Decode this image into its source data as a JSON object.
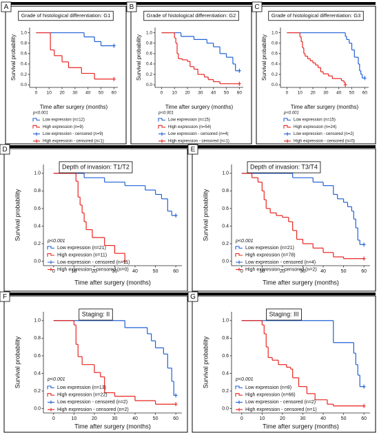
{
  "chart_data": [
    {
      "type": "step",
      "letter": "A",
      "title": "Grade of histological differentiation: G1",
      "xlabel": "Time after surgery (months)",
      "ylabel": "Survival probability",
      "annotation": "p<0.001",
      "xlim": [
        -5,
        63
      ],
      "ylim": [
        -0.05,
        1.1
      ],
      "xticks": [
        0,
        10,
        20,
        30,
        40,
        50,
        60
      ],
      "yticks": [
        {
          "value": 0,
          "label": "0.0"
        },
        0.2,
        0.4,
        0.6,
        0.8,
        {
          "value": 1,
          "label": "1.0"
        }
      ],
      "series": [
        {
          "name": "Low expression (n=12)",
          "color": "#1f5fd6",
          "x": [
            0,
            37,
            45,
            50,
            60
          ],
          "values": [
            1,
            0.92,
            0.83,
            0.75,
            0.75
          ]
        },
        {
          "name": "High expression (n=9)",
          "color": "#e8231e",
          "x": [
            0,
            11,
            14,
            20,
            25,
            35,
            45,
            60
          ],
          "values": [
            1,
            0.67,
            0.56,
            0.44,
            0.33,
            0.22,
            0.11,
            0.11
          ]
        }
      ],
      "censored_labels": [
        "Low expression - censored (n=9)",
        "High expression - censored (n=1)"
      ]
    },
    {
      "type": "step",
      "letter": "B",
      "title": "Grade of histological differentiation: G2",
      "xlabel": "Time after surgery (months)",
      "ylabel": "Survival probability",
      "annotation": "p<0.001",
      "xlim": [
        -5,
        63
      ],
      "ylim": [
        -0.05,
        1.1
      ],
      "xticks": [
        0,
        10,
        20,
        30,
        40,
        50,
        60
      ],
      "yticks": [
        {
          "value": 0,
          "label": "0.0"
        },
        0.2,
        0.4,
        0.6,
        0.8,
        {
          "value": 1,
          "label": "1.0"
        }
      ],
      "series": [
        {
          "name": "Low expression (n=15)",
          "color": "#1f5fd6",
          "x": [
            0,
            15,
            25,
            35,
            40,
            45,
            50,
            55,
            57,
            60
          ],
          "values": [
            1,
            0.93,
            0.87,
            0.8,
            0.73,
            0.6,
            0.53,
            0.4,
            0.27,
            0.27
          ]
        },
        {
          "name": "High expression (n=54)",
          "color": "#e8231e",
          "x": [
            0,
            10,
            11,
            12,
            13,
            16,
            20,
            22,
            25,
            28,
            33,
            36,
            40,
            45,
            60
          ],
          "values": [
            1,
            0.9,
            0.8,
            0.6,
            0.5,
            0.48,
            0.45,
            0.35,
            0.3,
            0.2,
            0.15,
            0.1,
            0.06,
            0.02,
            0.02
          ]
        }
      ],
      "censored_labels": [
        "Low expression - censored (n=4)",
        "High expression - censored (n=1)"
      ]
    },
    {
      "type": "step",
      "letter": "C",
      "title": "Grade of histological differentiation: G3",
      "xlabel": "Time after surgery (months)",
      "ylabel": "Survival probability",
      "annotation": "p<0.001",
      "xlim": [
        -5,
        63
      ],
      "ylim": [
        -0.05,
        1.1
      ],
      "xticks": [
        0,
        10,
        20,
        30,
        40,
        50,
        60
      ],
      "yticks": [
        {
          "value": 0,
          "label": "0.0"
        },
        0.2,
        0.4,
        0.6,
        0.8,
        {
          "value": 1,
          "label": "1.0"
        }
      ],
      "series": [
        {
          "name": "Low expression (n=15)",
          "color": "#1f5fd6",
          "x": [
            0,
            45,
            46,
            48,
            50,
            52,
            55,
            56,
            57,
            58,
            60
          ],
          "values": [
            1,
            0.93,
            0.87,
            0.8,
            0.67,
            0.53,
            0.4,
            0.27,
            0.2,
            0.13,
            0.13
          ]
        },
        {
          "name": "High expression (n=24)",
          "color": "#e8231e",
          "x": [
            0,
            10,
            11,
            12,
            13,
            14,
            16,
            18,
            20,
            22,
            24,
            26,
            28,
            32,
            35,
            42,
            44,
            45
          ],
          "values": [
            1,
            0.92,
            0.83,
            0.71,
            0.6,
            0.55,
            0.5,
            0.46,
            0.42,
            0.38,
            0.33,
            0.25,
            0.21,
            0.17,
            0.12,
            0.08,
            0.04,
            0
          ]
        }
      ],
      "censored_labels": [
        "Low expression - censored (n=2)",
        "High expression - censored (n=0)"
      ]
    },
    {
      "type": "step",
      "letter": "D",
      "title": "Depth of invasion: T1/T2",
      "xlabel": "Time after surgery (months)",
      "ylabel": "Survival probability",
      "annotation": "p<0.001",
      "xlim": [
        -5,
        63
      ],
      "ylim": [
        -0.05,
        1.1
      ],
      "xticks": [
        0,
        10,
        20,
        30,
        40,
        50,
        60
      ],
      "yticks": [
        {
          "value": 0,
          "label": "0.0"
        },
        0.2,
        0.4,
        0.6,
        0.8,
        {
          "value": 1,
          "label": "1.0"
        }
      ],
      "series": [
        {
          "name": "Low expression (n=21)",
          "color": "#1f5fd6",
          "x": [
            0,
            15,
            25,
            35,
            45,
            50,
            53,
            56,
            58,
            60
          ],
          "values": [
            1,
            0.95,
            0.9,
            0.86,
            0.81,
            0.76,
            0.71,
            0.57,
            0.52,
            0.52
          ]
        },
        {
          "name": "High expression (n=11)",
          "color": "#e8231e",
          "x": [
            0,
            11,
            12,
            13,
            14,
            15,
            16,
            19,
            25,
            30,
            35
          ],
          "values": [
            1,
            0.91,
            0.73,
            0.64,
            0.55,
            0.45,
            0.36,
            0.27,
            0.18,
            0.09,
            0
          ]
        }
      ],
      "censored_labels": [
        "Low expression - censored (n=11)",
        "High expression - censored (n=0)"
      ]
    },
    {
      "type": "step",
      "letter": "E",
      "title": "Depth of invasion: T3/T4",
      "xlabel": "Time after surgery (months)",
      "ylabel": "Survival probability",
      "annotation": "p<0.001",
      "xlim": [
        -5,
        63
      ],
      "ylim": [
        -0.05,
        1.1
      ],
      "xticks": [
        0,
        10,
        20,
        30,
        40,
        50,
        60
      ],
      "yticks": [
        {
          "value": 0,
          "label": "0.0"
        },
        0.2,
        0.4,
        0.6,
        0.8,
        {
          "value": 1,
          "label": "1.0"
        }
      ],
      "series": [
        {
          "name": "Low expression (n=21)",
          "color": "#1f5fd6",
          "x": [
            0,
            25,
            35,
            40,
            45,
            47,
            50,
            52,
            54,
            55,
            56,
            57,
            58,
            60
          ],
          "values": [
            1,
            0.95,
            0.9,
            0.86,
            0.76,
            0.71,
            0.67,
            0.62,
            0.57,
            0.48,
            0.38,
            0.24,
            0.19,
            0.19
          ]
        },
        {
          "name": "High expression (n=78)",
          "color": "#e8231e",
          "x": [
            0,
            5,
            8,
            10,
            11,
            12,
            14,
            17,
            20,
            23,
            25,
            27,
            30,
            35,
            40,
            45,
            50,
            60
          ],
          "values": [
            1,
            0.95,
            0.9,
            0.8,
            0.7,
            0.6,
            0.55,
            0.52,
            0.5,
            0.45,
            0.35,
            0.25,
            0.2,
            0.15,
            0.1,
            0.05,
            0.03,
            0.03
          ]
        }
      ],
      "censored_labels": [
        "Low expression - censored (n=4)",
        "High expression - censored (n=2)"
      ]
    },
    {
      "type": "step",
      "letter": "F",
      "title": "Staging: II",
      "xlabel": "Time after surgery (months)",
      "ylabel": "Survival probability",
      "annotation": "p<0.001",
      "xlim": [
        -5,
        63
      ],
      "ylim": [
        -0.05,
        1.1
      ],
      "xticks": [
        0,
        10,
        20,
        30,
        40,
        50,
        60
      ],
      "yticks": [
        {
          "value": 0,
          "label": "0.0"
        },
        0.2,
        0.4,
        0.6,
        0.8,
        {
          "value": 1,
          "label": "1.0"
        }
      ],
      "series": [
        {
          "name": "Low expression (n=13)",
          "color": "#1f5fd6",
          "x": [
            0,
            35,
            46,
            48,
            50,
            54,
            56,
            58,
            59,
            60
          ],
          "values": [
            1,
            0.92,
            0.85,
            0.77,
            0.69,
            0.62,
            0.46,
            0.31,
            0.15,
            0.15
          ]
        },
        {
          "name": "High expression (n=22)",
          "color": "#e8231e",
          "x": [
            0,
            10,
            11,
            12,
            14,
            20,
            23,
            25,
            30,
            40,
            50,
            60
          ],
          "values": [
            1,
            0.95,
            0.73,
            0.59,
            0.5,
            0.41,
            0.36,
            0.18,
            0.14,
            0.09,
            0.05,
            0.05
          ]
        }
      ],
      "censored_labels": [
        "Low expression - censored (n=2)",
        "High expression - censored (n=2)"
      ]
    },
    {
      "type": "step",
      "letter": "G",
      "title": "Staging: III",
      "xlabel": "Time after surgery (months)",
      "ylabel": "Survival probability",
      "annotation": "p<0.001",
      "xlim": [
        -5,
        63
      ],
      "ylim": [
        -0.05,
        1.1
      ],
      "xticks": [
        0,
        10,
        20,
        30,
        40,
        50,
        60
      ],
      "yticks": [
        {
          "value": 0,
          "label": "0.0"
        },
        0.2,
        0.4,
        0.6,
        0.8,
        {
          "value": 1,
          "label": "1.0"
        }
      ],
      "series": [
        {
          "name": "Low expression (n=8)",
          "color": "#1f5fd6",
          "x": [
            0,
            45,
            55,
            56,
            57,
            58,
            60
          ],
          "values": [
            1,
            0.75,
            0.63,
            0.5,
            0.38,
            0.25,
            0.25
          ]
        },
        {
          "name": "High expression (n=66)",
          "color": "#e8231e",
          "x": [
            0,
            10,
            11,
            12,
            13,
            15,
            18,
            22,
            24,
            25,
            28,
            32,
            36,
            42,
            45,
            60
          ],
          "values": [
            1,
            0.95,
            0.85,
            0.7,
            0.58,
            0.55,
            0.5,
            0.47,
            0.45,
            0.35,
            0.25,
            0.17,
            0.1,
            0.05,
            0.03,
            0.03
          ]
        }
      ],
      "censored_labels": [
        "Low expression - censored (n=2)",
        "High expression - censored (n=1)"
      ]
    }
  ]
}
